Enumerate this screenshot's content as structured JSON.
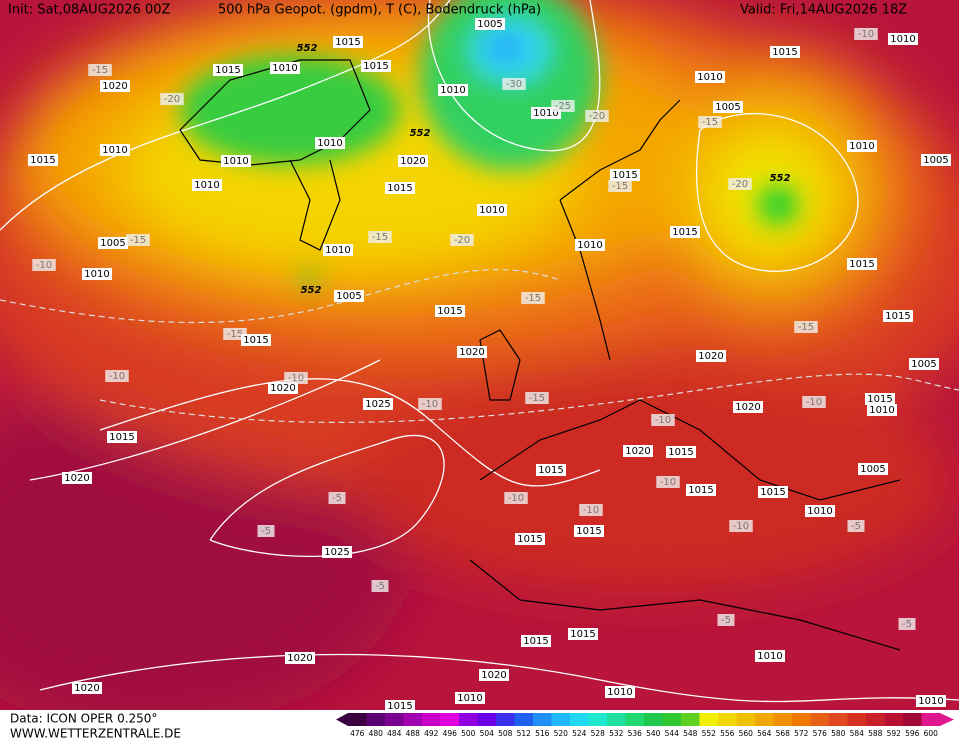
{
  "header": {
    "init": "Init: Sat,08AUG2026 00Z",
    "title": "500 hPa Geopot. (gpdm), T (C), Bodendruck (hPa)",
    "valid": "Valid: Fri,14AUG2026 18Z"
  },
  "footer": {
    "source": "Data: ICON OPER 0.250°",
    "site": "WWW.WETTERZENTRALE.DE"
  },
  "colorbar": {
    "labels": [
      "476",
      "480",
      "484",
      "488",
      "492",
      "496",
      "500",
      "504",
      "508",
      "512",
      "516",
      "520",
      "524",
      "528",
      "532",
      "536",
      "540",
      "544",
      "548",
      "552",
      "556",
      "560",
      "564",
      "568",
      "572",
      "576",
      "580",
      "584",
      "588",
      "592",
      "596",
      "600"
    ],
    "colors": [
      "#3a0040",
      "#5a0070",
      "#7a0090",
      "#a000b0",
      "#c800c8",
      "#e000e0",
      "#9000e0",
      "#6a00e8",
      "#3c30f0",
      "#2060f0",
      "#2090f8",
      "#20b8f8",
      "#20d8f0",
      "#20e8d0",
      "#20e0a0",
      "#20d870",
      "#20c850",
      "#30c830",
      "#60d020",
      "#f0f000",
      "#f0d800",
      "#f0c000",
      "#f0a800",
      "#f09000",
      "#f07800",
      "#e86018",
      "#e04820",
      "#d83020",
      "#c82028",
      "#b81030",
      "#a00838",
      "#e01890"
    ]
  },
  "map_labels": [
    "1005",
    "1015",
    "1015",
    "552",
    "1010",
    "1015",
    "1020",
    "-15",
    "-20",
    "1010",
    "1015",
    "1010",
    "1010",
    "1010",
    "1020",
    "1015",
    "552",
    "1010",
    "-30",
    "1010",
    "-25",
    "-20",
    "1015",
    "1010",
    "1005",
    "-15",
    "-20",
    "552",
    "1010",
    "1005",
    "1015",
    "-15",
    "1010",
    "1015",
    "1010",
    "-15",
    "-20",
    "1010",
    "1005",
    "-15",
    "-10",
    "1010",
    "552",
    "1005",
    "1015",
    "-15",
    "1015",
    "-15",
    "1015",
    "1020",
    "-15",
    "1015",
    "1020",
    "1005",
    "-10",
    "1020",
    "-10",
    "1025",
    "-10",
    "-15",
    "1020",
    "-10",
    "1015",
    "1010",
    "-10",
    "1015",
    "1020",
    "1015",
    "1020",
    "1015",
    "1005",
    "-10",
    "1015",
    "1015",
    "-5",
    "-10",
    "-10",
    "1010",
    "-5",
    "1015",
    "1015",
    "-10",
    "-5",
    "1025",
    "-5",
    "-5",
    "-5",
    "1015",
    "1015",
    "1010",
    "1020",
    "1020",
    "1020",
    "1010",
    "1010",
    "1015",
    "1010",
    "-10",
    "1010"
  ]
}
